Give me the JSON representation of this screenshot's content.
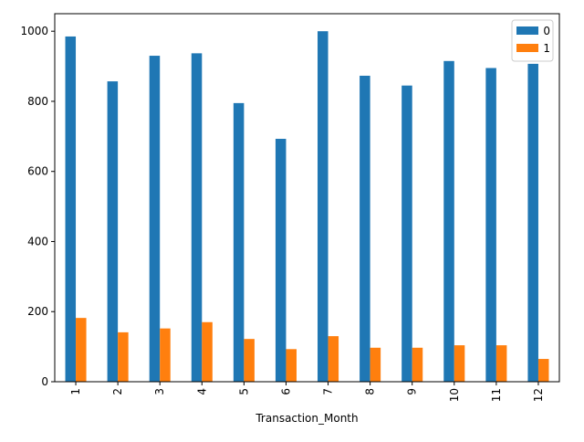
{
  "chart_data": {
    "type": "bar",
    "xlabel": "Transaction_Month",
    "ylabel": "",
    "ylim": [
      0,
      1050
    ],
    "yticks": [
      0,
      200,
      400,
      600,
      800,
      1000
    ],
    "categories": [
      "1",
      "2",
      "3",
      "4",
      "5",
      "6",
      "7",
      "8",
      "9",
      "10",
      "11",
      "12"
    ],
    "series": [
      {
        "name": "0",
        "color": "#1f77b4",
        "values": [
          985,
          857,
          930,
          937,
          795,
          693,
          1000,
          873,
          845,
          915,
          895,
          907
        ]
      },
      {
        "name": "1",
        "color": "#ff7f0e",
        "values": [
          182,
          141,
          152,
          170,
          122,
          93,
          130,
          97,
          97,
          104,
          104,
          65
        ]
      }
    ],
    "legend": "top-right",
    "grid": false
  }
}
